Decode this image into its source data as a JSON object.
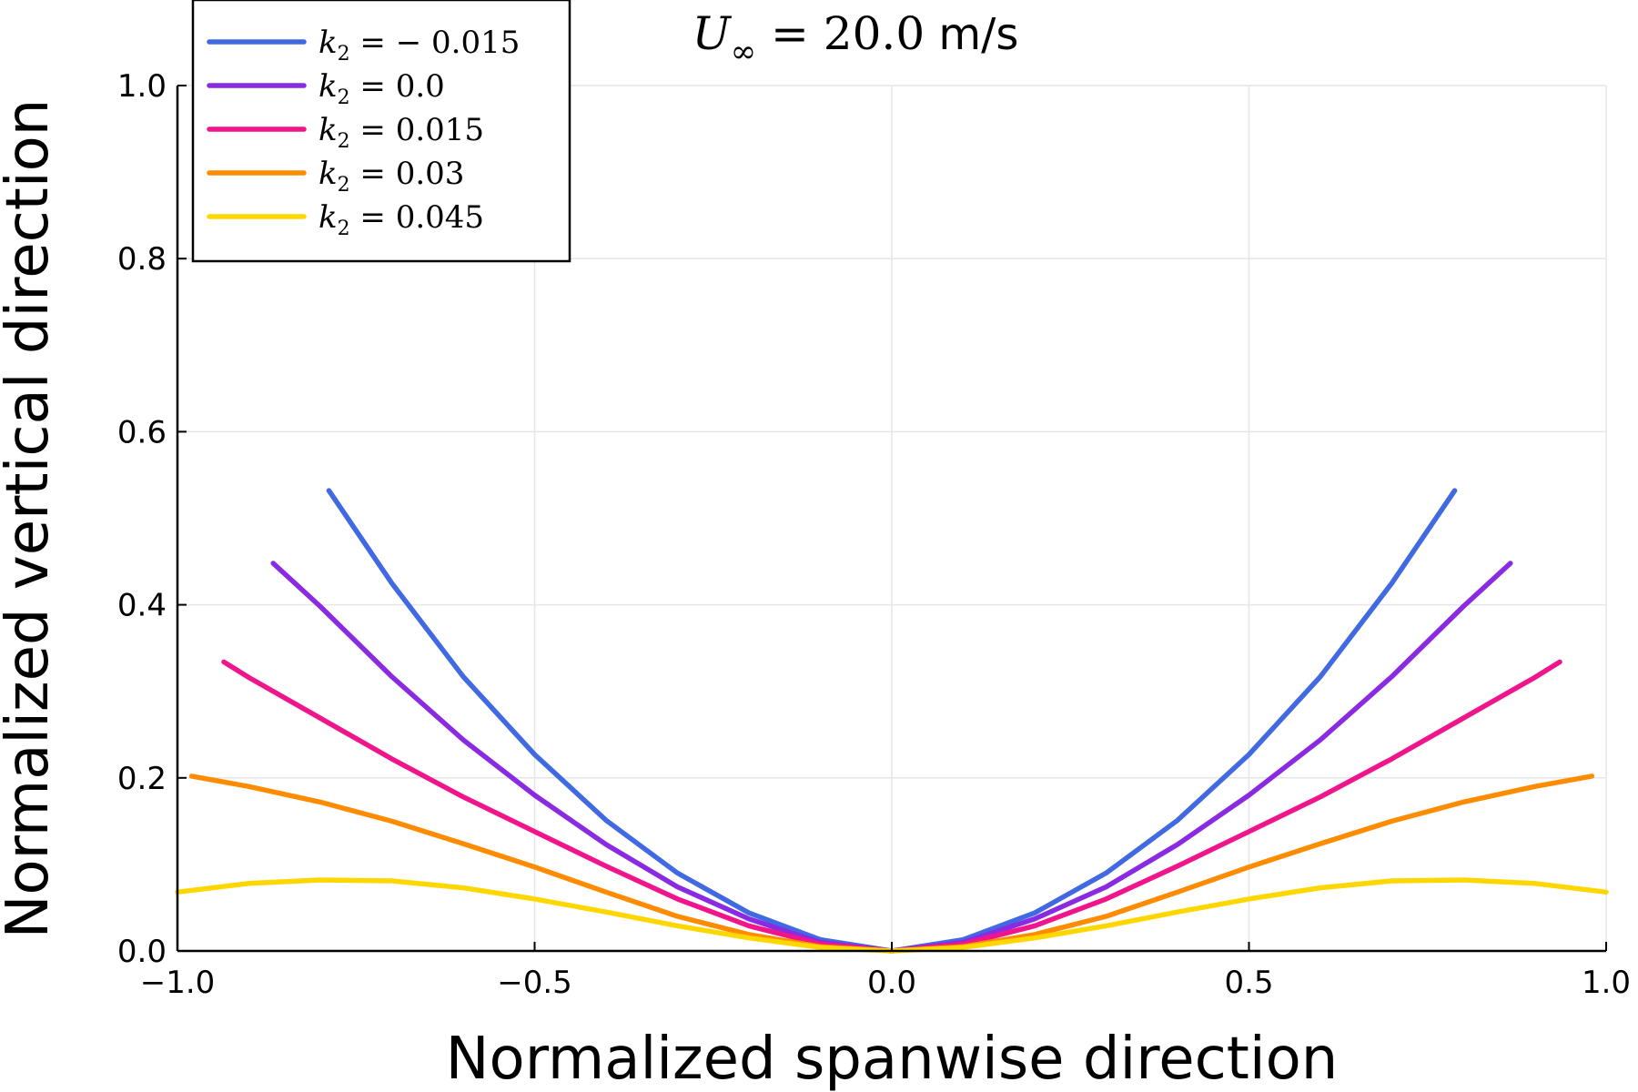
{
  "chart_data": {
    "type": "line",
    "title": {
      "symbol": "U",
      "subscript": "∞",
      "value": " = 20.0",
      "unit": " m/s"
    },
    "xlabel": "Normalized spanwise direction",
    "ylabel": "Normalized vertical direction",
    "xlim": [
      -1.0,
      1.0
    ],
    "ylim": [
      0.0,
      1.0
    ],
    "x_ticks": [
      -1.0,
      -0.5,
      0.0,
      0.5,
      1.0
    ],
    "y_ticks": [
      0.0,
      0.2,
      0.4,
      0.6,
      0.8,
      1.0
    ],
    "x_tick_labels": [
      "−1.0",
      "−0.5",
      "0.0",
      "0.5",
      "1.0"
    ],
    "y_tick_labels": [
      "0.0",
      "0.2",
      "0.4",
      "0.6",
      "0.8",
      "1.0"
    ],
    "grid": true,
    "legend_position": "top-left",
    "series": [
      {
        "name": "k₂ = −0.015",
        "legend_symbol": "k",
        "legend_sub": "2",
        "legend_value": " = − 0.015",
        "color": "#4169E1",
        "k2": -0.015,
        "x": [
          -0.788,
          -0.7,
          -0.6,
          -0.5,
          -0.4,
          -0.3,
          -0.2,
          -0.1,
          0.0,
          0.1,
          0.2,
          0.3,
          0.4,
          0.5,
          0.6,
          0.7,
          0.788
        ],
        "y": [
          0.532,
          0.425,
          0.317,
          0.227,
          0.151,
          0.09,
          0.044,
          0.013,
          0.0,
          0.013,
          0.044,
          0.09,
          0.151,
          0.227,
          0.317,
          0.425,
          0.532
        ]
      },
      {
        "name": "k₂ = 0.0",
        "legend_symbol": "k",
        "legend_sub": "2",
        "legend_value": " = 0.0",
        "color": "#8A2BE2",
        "k2": 0.0,
        "x": [
          -0.866,
          -0.8,
          -0.7,
          -0.6,
          -0.5,
          -0.4,
          -0.3,
          -0.2,
          -0.1,
          0.0,
          0.1,
          0.2,
          0.3,
          0.4,
          0.5,
          0.6,
          0.7,
          0.8,
          0.866
        ],
        "y": [
          0.448,
          0.398,
          0.317,
          0.244,
          0.18,
          0.123,
          0.074,
          0.037,
          0.01,
          0.0,
          0.01,
          0.037,
          0.074,
          0.123,
          0.18,
          0.244,
          0.317,
          0.398,
          0.448
        ]
      },
      {
        "name": "k₂ = 0.015",
        "legend_symbol": "k",
        "legend_sub": "2",
        "legend_value": " = 0.015",
        "color": "#F0158A",
        "k2": 0.015,
        "x": [
          -0.935,
          -0.9,
          -0.8,
          -0.7,
          -0.6,
          -0.5,
          -0.4,
          -0.3,
          -0.2,
          -0.1,
          0.0,
          0.1,
          0.2,
          0.3,
          0.4,
          0.5,
          0.6,
          0.7,
          0.8,
          0.9,
          0.935
        ],
        "y": [
          0.334,
          0.316,
          0.269,
          0.222,
          0.178,
          0.138,
          0.098,
          0.06,
          0.029,
          0.008,
          0.0,
          0.008,
          0.029,
          0.06,
          0.098,
          0.138,
          0.178,
          0.222,
          0.269,
          0.316,
          0.334
        ]
      },
      {
        "name": "k₂ = 0.03",
        "legend_symbol": "k",
        "legend_sub": "2",
        "legend_value": " = 0.03",
        "color": "#FF8C00",
        "k2": 0.03,
        "x": [
          -0.98,
          -0.9,
          -0.8,
          -0.7,
          -0.6,
          -0.5,
          -0.4,
          -0.3,
          -0.2,
          -0.1,
          0.0,
          0.1,
          0.2,
          0.3,
          0.4,
          0.5,
          0.6,
          0.7,
          0.8,
          0.9,
          0.98
        ],
        "y": [
          0.202,
          0.19,
          0.172,
          0.15,
          0.124,
          0.097,
          0.068,
          0.04,
          0.019,
          0.005,
          0.0,
          0.005,
          0.019,
          0.04,
          0.068,
          0.097,
          0.124,
          0.15,
          0.172,
          0.19,
          0.202
        ]
      },
      {
        "name": "k₂ = 0.045",
        "legend_symbol": "k",
        "legend_sub": "2",
        "legend_value": " = 0.045",
        "color": "#FFD700",
        "k2": 0.045,
        "x": [
          -1.0,
          -0.9,
          -0.8,
          -0.7,
          -0.6,
          -0.5,
          -0.4,
          -0.3,
          -0.2,
          -0.1,
          0.0,
          0.1,
          0.2,
          0.3,
          0.4,
          0.5,
          0.6,
          0.7,
          0.8,
          0.9,
          1.0
        ],
        "y": [
          0.068,
          0.078,
          0.082,
          0.081,
          0.073,
          0.06,
          0.045,
          0.029,
          0.015,
          0.004,
          0.0,
          0.004,
          0.015,
          0.029,
          0.045,
          0.06,
          0.073,
          0.081,
          0.082,
          0.078,
          0.068
        ]
      }
    ]
  }
}
